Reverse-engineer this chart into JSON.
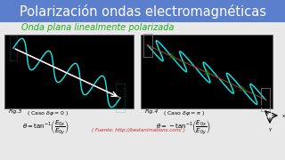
{
  "title": "Polarización ondas electromagnéticas",
  "subtitle": "Onda plana linealmente polarizada",
  "subtitle_color": "#22aa22",
  "header_bg": "#5b7fcc",
  "header_text_color": "#ffffff",
  "source_text": "( Fuente: http://bestanimations.com/ )",
  "source_color": "#cc2222",
  "bg_color": "#e8e8e8"
}
